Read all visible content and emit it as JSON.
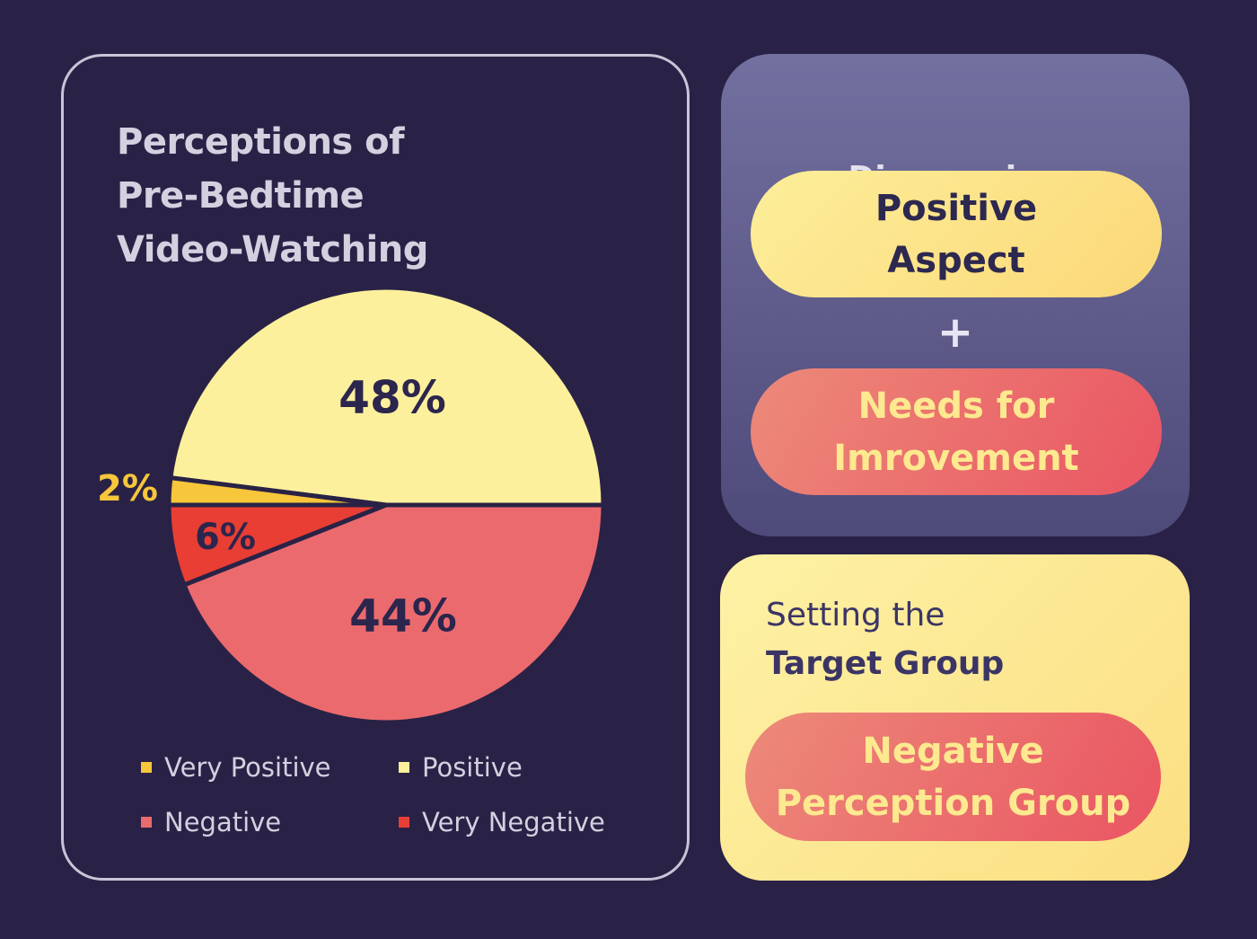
{
  "chart_data": {
    "type": "pie",
    "title": [
      "Perceptions of",
      "Pre-Bedtime",
      "Video-Watching"
    ],
    "slices": [
      {
        "label": "Positive",
        "value": 48,
        "display": "48%",
        "color": "#fdf09c",
        "label_color": "#2c254d"
      },
      {
        "label": "Very Positive",
        "value": 2,
        "display": "2%",
        "color": "#f7c63a",
        "label_color": "#f7c63a"
      },
      {
        "label": "Very Negative",
        "value": 6,
        "display": "6%",
        "color": "#e83e34",
        "label_color": "#2c254d"
      },
      {
        "label": "Negative",
        "value": 44,
        "display": "44%",
        "color": "#eb6a6e",
        "label_color": "#2c254d"
      }
    ],
    "legend": [
      {
        "label": "Very Positive",
        "color": "#f7c63a"
      },
      {
        "label": "Positive",
        "color": "#fdf09c"
      },
      {
        "label": "Negative",
        "color": "#eb6a6e"
      },
      {
        "label": "Very Negative",
        "color": "#e83e34"
      }
    ],
    "legend_position": "bottom"
  },
  "discovering": {
    "title": "Discovering",
    "positive_lines": [
      "Positive",
      "Aspect"
    ],
    "plus": "+",
    "needs_lines": [
      "Needs for",
      "Imrovement"
    ]
  },
  "target": {
    "line1": "Setting the",
    "line2": "Target Group",
    "group_lines": [
      "Negative",
      "Perception Group"
    ]
  }
}
